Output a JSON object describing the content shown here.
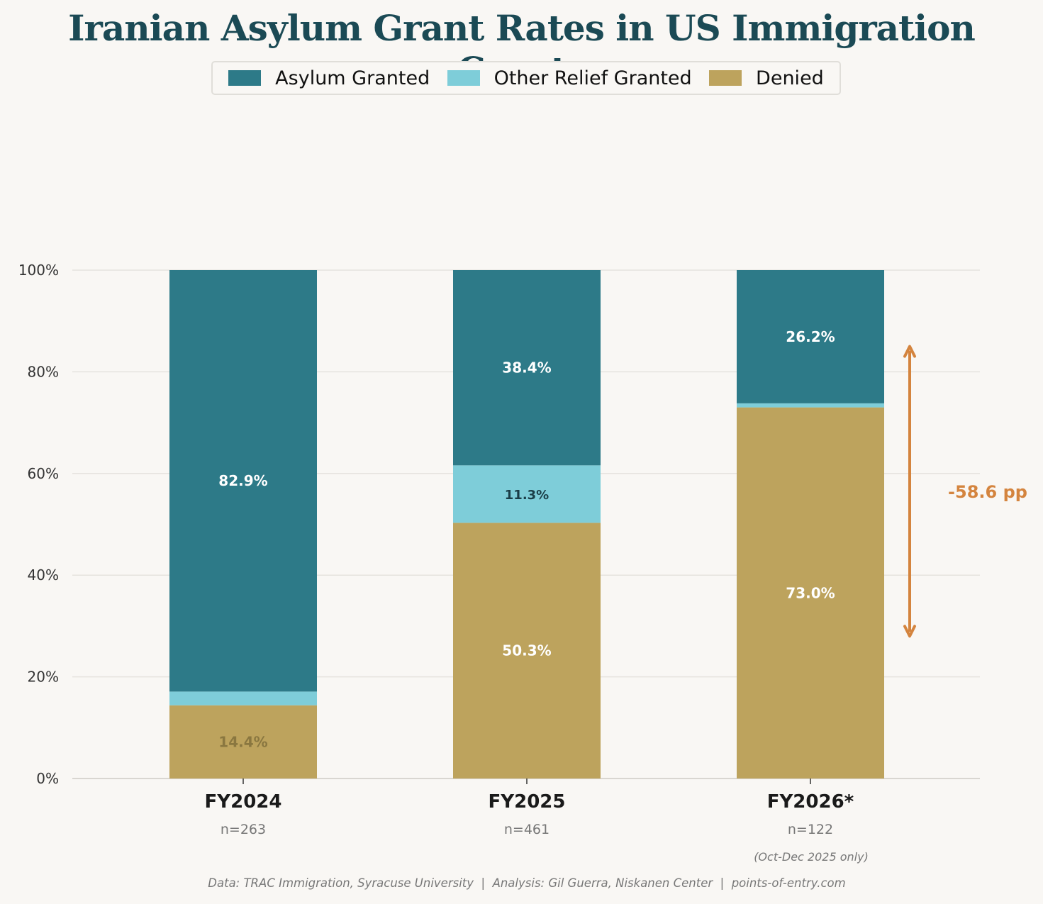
{
  "chart_data": {
    "type": "bar",
    "stacked": true,
    "title": "Iranian Asylum Grant Rates in US Immigration Courts",
    "categories": [
      "FY2024",
      "FY2025",
      "FY2026*"
    ],
    "sample_sizes": [
      "n=263",
      "n=461",
      "n=122"
    ],
    "category_notes": [
      "",
      "",
      "(Oct-Dec 2025 only)"
    ],
    "series": [
      {
        "name": "Denied",
        "color": "#bda35d",
        "values": [
          14.4,
          50.3,
          73.0
        ],
        "labels": [
          "14.4%",
          "50.3%",
          "73.0%"
        ],
        "label_colors": [
          "#8a7740",
          "#ffffff",
          "#ffffff"
        ]
      },
      {
        "name": "Other Relief Granted",
        "color": "#7ecdd9",
        "values": [
          2.7,
          11.3,
          0.8
        ],
        "labels": [
          "",
          "11.3%",
          ""
        ],
        "label_colors": [
          "#1b3e48",
          "#1b3e48",
          "#1b3e48"
        ]
      },
      {
        "name": "Asylum Granted",
        "color": "#2d7a88",
        "values": [
          82.9,
          38.4,
          26.2
        ],
        "labels": [
          "82.9%",
          "38.4%",
          "26.2%"
        ],
        "label_colors": [
          "#ffffff",
          "#ffffff",
          "#ffffff"
        ]
      }
    ],
    "legend": [
      {
        "name": "Asylum Granted",
        "color": "#2d7a88"
      },
      {
        "name": "Other Relief Granted",
        "color": "#7ecdd9"
      },
      {
        "name": "Denied",
        "color": "#bda35d"
      }
    ],
    "y_ticks": [
      0,
      20,
      40,
      60,
      80,
      100
    ],
    "y_tick_labels": [
      "0%",
      "20%",
      "40%",
      "60%",
      "80%",
      "100%"
    ],
    "ylim": [
      0,
      100
    ],
    "grid": true,
    "annotation": {
      "label": "-58.6 pp",
      "from": 85,
      "to": 28,
      "color": "#d4843e"
    },
    "footer": "Data: TRAC Immigration, Syracuse University  |  Analysis: Gil Guerra, Niskanen Center  |  points-of-entry.com"
  }
}
